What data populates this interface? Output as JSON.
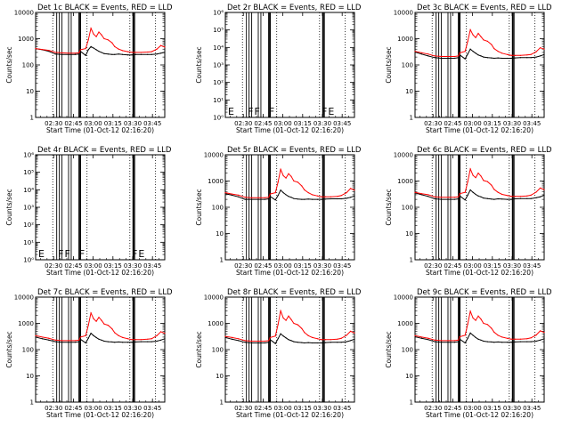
{
  "panel_titles": [
    "Det 1c BLACK = Events, RED = LLD",
    "Det 2r BLACK = Events, RED = LLD",
    "Det 3c BLACK = Events, RED = LLD",
    "Det 4r BLACK = Events, RED = LLD",
    "Det 5r BLACK = Events, RED = LLD",
    "Det 6c BLACK = Events, RED = LLD",
    "Det 7c BLACK = Events, RED = LLD",
    "Det 8r BLACK = Events, RED = LLD",
    "Det 9c BLACK = Events, RED = LLD"
  ],
  "ylabel": "Counts/sec",
  "xlabel": "Start Time (01-Oct-12 02:16:20)",
  "colors": {
    "events": "#000000",
    "lld": "#ff0000"
  },
  "chart_data": {
    "type": "line",
    "layout": "3x3 grid",
    "x_unit": "minutes since 02:16:20",
    "xlim": [
      0,
      98
    ],
    "x_ticks": [
      {
        "value": 13.67,
        "label": "02:30"
      },
      {
        "value": 28.67,
        "label": "02:45"
      },
      {
        "value": 43.67,
        "label": "03:00"
      },
      {
        "value": 58.67,
        "label": "03:15"
      },
      {
        "value": 73.67,
        "label": "03:30"
      },
      {
        "value": 88.67,
        "label": "03:45"
      }
    ],
    "dotted_verticals": [
      13.0,
      39.0,
      71.5,
      91.0
    ],
    "solid_verticals": [
      16.0,
      18.0,
      20.0,
      25.0,
      27.0,
      33.0,
      34.0,
      74.0,
      75.0
    ],
    "log_ticks_counts": [
      {
        "value": 1,
        "label": "1"
      },
      {
        "value": 10,
        "label": "10"
      },
      {
        "value": 100,
        "label": "100"
      },
      {
        "value": 1000,
        "label": "1000"
      },
      {
        "value": 10000,
        "label": "10000"
      }
    ],
    "log_ticks_empty": [
      {
        "value": 1,
        "label": "10⁰"
      },
      {
        "value": 10,
        "label": "10¹"
      },
      {
        "value": 100,
        "label": "10²"
      },
      {
        "value": 1000,
        "label": "10³"
      },
      {
        "value": 10000,
        "label": "10⁴"
      },
      {
        "value": 100000,
        "label": "10⁵"
      },
      {
        "value": 1000000,
        "label": "10⁶"
      }
    ],
    "flag_marks": [
      {
        "x": 2,
        "label": "E"
      },
      {
        "x": 17,
        "label": "F"
      },
      {
        "x": 22,
        "label": "F"
      },
      {
        "x": 33,
        "label": "F"
      },
      {
        "x": 73,
        "label": "F"
      },
      {
        "x": 78,
        "label": "E"
      }
    ],
    "x": [
      0,
      5,
      10,
      15,
      20,
      25,
      30,
      33,
      34,
      38,
      40,
      42,
      44,
      46,
      48,
      50,
      52,
      55,
      58,
      60,
      63,
      66,
      70,
      73,
      76,
      80,
      85,
      88,
      92,
      95,
      98
    ],
    "panels": [
      {
        "ylim": [
          1,
          10000
        ],
        "series": [
          {
            "name": "BLACK = Events",
            "color": "#000000",
            "values": [
              420,
              380,
              330,
              260,
              250,
              250,
              250,
              260,
              330,
              230,
              380,
              500,
              440,
              380,
              330,
              300,
              270,
              260,
              250,
              250,
              260,
              250,
              240,
              240,
              250,
              250,
              250,
              250,
              260,
              280,
              300
            ]
          },
          {
            "name": "RED = LLD",
            "color": "#ff0000",
            "values": [
              420,
              390,
              360,
              300,
              290,
              280,
              280,
              290,
              380,
              420,
              900,
              2500,
              1500,
              1200,
              1800,
              1400,
              1000,
              900,
              700,
              500,
              400,
              350,
              320,
              300,
              300,
              300,
              310,
              320,
              400,
              550,
              480
            ]
          }
        ]
      },
      {
        "ylim": [
          1,
          1000000
        ],
        "series": []
      },
      {
        "ylim": [
          1,
          10000
        ],
        "series": [
          {
            "name": "BLACK = Events",
            "color": "#000000",
            "values": [
              310,
              260,
              220,
              190,
              180,
              180,
              180,
              190,
              240,
              170,
              260,
              400,
              330,
              280,
              240,
              220,
              200,
              190,
              185,
              180,
              185,
              180,
              180,
              180,
              185,
              190,
              190,
              190,
              200,
              220,
              250
            ]
          },
          {
            "name": "RED = LLD",
            "color": "#ff0000",
            "values": [
              330,
              290,
              260,
              220,
              210,
              210,
              210,
              220,
              290,
              330,
              800,
              2200,
              1400,
              1100,
              1600,
              1200,
              900,
              800,
              600,
              420,
              330,
              280,
              250,
              230,
              230,
              230,
              240,
              250,
              320,
              450,
              400
            ]
          }
        ]
      },
      {
        "ylim": [
          1,
          1000000
        ],
        "series": []
      },
      {
        "ylim": [
          1,
          10000
        ],
        "series": [
          {
            "name": "BLACK = Events",
            "color": "#000000",
            "values": [
              330,
              290,
              250,
              200,
              200,
              200,
              200,
              210,
              260,
              190,
              280,
              450,
              360,
              300,
              260,
              240,
              215,
              205,
              200,
              200,
              205,
              200,
              200,
              200,
              205,
              210,
              210,
              210,
              220,
              240,
              270
            ]
          },
          {
            "name": "RED = LLD",
            "color": "#ff0000",
            "values": [
              360,
              320,
              290,
              240,
              230,
              230,
              230,
              240,
              320,
              360,
              900,
              2800,
              1600,
              1300,
              1900,
              1500,
              1000,
              900,
              650,
              460,
              360,
              300,
              270,
              250,
              250,
              250,
              260,
              280,
              360,
              520,
              450
            ]
          }
        ]
      },
      {
        "ylim": [
          1,
          10000
        ],
        "series": [
          {
            "name": "BLACK = Events",
            "color": "#000000",
            "values": [
              350,
              300,
              260,
              210,
              200,
              200,
              200,
              210,
              270,
              190,
              290,
              460,
              370,
              310,
              270,
              250,
              225,
              215,
              205,
              200,
              210,
              205,
              200,
              200,
              210,
              215,
              215,
              215,
              230,
              250,
              290
            ]
          },
          {
            "name": "RED = LLD",
            "color": "#ff0000",
            "values": [
              370,
              330,
              300,
              250,
              240,
              240,
              240,
              250,
              330,
              370,
              950,
              2900,
              1650,
              1350,
              2000,
              1550,
              1050,
              950,
              700,
              480,
              370,
              310,
              280,
              260,
              260,
              260,
              270,
              290,
              380,
              540,
              470
            ]
          }
        ]
      },
      {
        "ylim": [
          1,
          10000
        ],
        "series": [
          {
            "name": "BLACK = Events",
            "color": "#000000",
            "values": [
              300,
              260,
              230,
              200,
              190,
              190,
              190,
              200,
              250,
              180,
              270,
              420,
              340,
              290,
              250,
              230,
              210,
              200,
              195,
              190,
              195,
              190,
              190,
              190,
              195,
              200,
              200,
              200,
              210,
              230,
              260
            ]
          },
          {
            "name": "RED = LLD",
            "color": "#ff0000",
            "values": [
              340,
              300,
              270,
              230,
              220,
              220,
              220,
              230,
              300,
              340,
              850,
              2500,
              1500,
              1200,
              1700,
              1300,
              950,
              850,
              620,
              440,
              340,
              290,
              260,
              240,
              240,
              240,
              250,
              260,
              340,
              480,
              420
            ]
          }
        ]
      },
      {
        "ylim": [
          1,
          10000
        ],
        "series": [
          {
            "name": "BLACK = Events",
            "color": "#000000",
            "values": [
              290,
              250,
              220,
              190,
              180,
              180,
              180,
              190,
              240,
              170,
              260,
              400,
              330,
              280,
              240,
              220,
              200,
              190,
              185,
              180,
              185,
              180,
              180,
              180,
              185,
              190,
              190,
              190,
              200,
              220,
              250
            ]
          },
          {
            "name": "RED = LLD",
            "color": "#ff0000",
            "values": [
              320,
              290,
              260,
              220,
              210,
              210,
              210,
              220,
              290,
              330,
              900,
              3000,
              1600,
              1300,
              1900,
              1400,
              1000,
              880,
              640,
              450,
              340,
              290,
              260,
              240,
              240,
              240,
              250,
              270,
              350,
              500,
              430
            ]
          }
        ]
      },
      {
        "ylim": [
          1,
          10000
        ],
        "series": [
          {
            "name": "BLACK = Events",
            "color": "#000000",
            "values": [
              310,
              270,
              240,
              200,
              190,
              190,
              190,
              200,
              250,
              180,
              270,
              430,
              350,
              290,
              250,
              230,
              210,
              200,
              195,
              190,
              195,
              190,
              190,
              190,
              195,
              200,
              200,
              200,
              210,
              230,
              260
            ]
          },
          {
            "name": "RED = LLD",
            "color": "#ff0000",
            "values": [
              340,
              300,
              270,
              230,
              220,
              220,
              220,
              230,
              310,
              350,
              950,
              2900,
              1600,
              1300,
              1900,
              1450,
              1000,
              900,
              650,
              460,
              350,
              300,
              270,
              250,
              250,
              250,
              260,
              280,
              360,
              520,
              450
            ]
          }
        ]
      }
    ]
  }
}
